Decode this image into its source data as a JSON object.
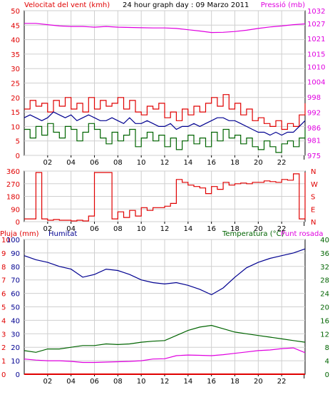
{
  "header": {
    "wind_label": "Velocitat del vent (kmh)",
    "title": "24 hour graph day : 09 Marzo 2011",
    "pressure_label": "Pressió (mb)"
  },
  "colors": {
    "red": "#e00000",
    "magenta": "#e000e0",
    "blue": "#000090",
    "green": "#006400",
    "grid": "#cfcfcf",
    "frame": "#000000"
  },
  "chart_data": [
    {
      "type": "line",
      "panel": "wind-pressure",
      "title": "24 hour graph day : 09 Marzo 2011",
      "x_ticks": [
        "02",
        "04",
        "06",
        "08",
        "10",
        "12",
        "14",
        "16",
        "18",
        "20",
        "22"
      ],
      "xlim_hours": [
        0,
        24
      ],
      "ylabel": "Velocitat del vent (kmh)",
      "ylim": [
        0,
        50
      ],
      "y_ticks": [
        0,
        5,
        10,
        15,
        20,
        25,
        30,
        35,
        40,
        45,
        50
      ],
      "y2label": "Pressió (mb)",
      "y2lim": [
        975,
        1032
      ],
      "y2_ticks": [
        975,
        981,
        986,
        992,
        998,
        1004,
        1010,
        1015,
        1021,
        1027,
        1032
      ],
      "series": [
        {
          "axis": "left",
          "color": "#e00000",
          "step": true,
          "x": [
            0,
            0.5,
            1,
            1.5,
            2,
            2.5,
            3,
            3.5,
            4,
            4.5,
            5,
            5.5,
            6,
            6.5,
            7,
            7.5,
            8,
            8.5,
            9,
            9.5,
            10,
            10.5,
            11,
            11.5,
            12,
            12.5,
            13,
            13.5,
            14,
            14.5,
            15,
            15.5,
            16,
            16.5,
            17,
            17.5,
            18,
            18.5,
            19,
            19.5,
            20,
            20.5,
            21,
            21.5,
            22,
            22.5,
            23,
            23.5,
            24
          ],
          "values": [
            16,
            19,
            17,
            18,
            15,
            19,
            17,
            20,
            16,
            18,
            15,
            20,
            16,
            19,
            17,
            18,
            20,
            16,
            19,
            15,
            14,
            17,
            16,
            18,
            13,
            15,
            12,
            16,
            14,
            17,
            15,
            18,
            20,
            17,
            21,
            16,
            18,
            14,
            16,
            12,
            13,
            11,
            10,
            12,
            9,
            11,
            10,
            14,
            18
          ]
        },
        {
          "axis": "left",
          "color": "#000090",
          "step": false,
          "x": [
            0,
            0.5,
            1,
            1.5,
            2,
            2.5,
            3,
            3.5,
            4,
            4.5,
            5,
            5.5,
            6,
            6.5,
            7,
            7.5,
            8,
            8.5,
            9,
            9.5,
            10,
            10.5,
            11,
            11.5,
            12,
            12.5,
            13,
            13.5,
            14,
            14.5,
            15,
            15.5,
            16,
            16.5,
            17,
            17.5,
            18,
            18.5,
            19,
            19.5,
            20,
            20.5,
            21,
            21.5,
            22,
            22.5,
            23,
            23.5,
            24
          ],
          "values": [
            13,
            14,
            13,
            12,
            13,
            15,
            14,
            13,
            14,
            12,
            13,
            14,
            13,
            12,
            12,
            13,
            12,
            11,
            13,
            11,
            11,
            12,
            11,
            10,
            10,
            11,
            9,
            10,
            10,
            11,
            10,
            11,
            12,
            13,
            13,
            12,
            12,
            11,
            10,
            9,
            8,
            8,
            7,
            8,
            7,
            8,
            8,
            10,
            12
          ]
        },
        {
          "axis": "left",
          "color": "#006400",
          "step": true,
          "x": [
            0,
            0.5,
            1,
            1.5,
            2,
            2.5,
            3,
            3.5,
            4,
            4.5,
            5,
            5.5,
            6,
            6.5,
            7,
            7.5,
            8,
            8.5,
            9,
            9.5,
            10,
            10.5,
            11,
            11.5,
            12,
            12.5,
            13,
            13.5,
            14,
            14.5,
            15,
            15.5,
            16,
            16.5,
            17,
            17.5,
            18,
            18.5,
            19,
            19.5,
            20,
            20.5,
            21,
            21.5,
            22,
            22.5,
            23,
            23.5,
            24
          ],
          "values": [
            9,
            6,
            10,
            7,
            11,
            8,
            6,
            10,
            9,
            5,
            8,
            11,
            9,
            6,
            4,
            8,
            5,
            7,
            9,
            3,
            6,
            8,
            5,
            7,
            3,
            6,
            2,
            5,
            7,
            4,
            6,
            3,
            8,
            5,
            9,
            6,
            7,
            4,
            6,
            3,
            2,
            5,
            3,
            1,
            4,
            5,
            3,
            6,
            9
          ]
        },
        {
          "axis": "right",
          "color": "#e000e0",
          "step": false,
          "x": [
            0,
            1,
            2,
            3,
            4,
            5,
            6,
            7,
            8,
            9,
            10,
            11,
            12,
            13,
            14,
            15,
            16,
            17,
            18,
            19,
            20,
            21,
            22,
            23,
            24
          ],
          "values": [
            1027,
            1027,
            1026.5,
            1026,
            1025.8,
            1025.8,
            1025.5,
            1025.8,
            1025.5,
            1025.4,
            1025.3,
            1025.2,
            1025.2,
            1025,
            1024.5,
            1024,
            1023.4,
            1023.5,
            1023.8,
            1024.3,
            1025,
            1025.6,
            1026,
            1026.5,
            1026.8
          ]
        }
      ]
    },
    {
      "type": "line",
      "panel": "wind-direction",
      "x_ticks": [
        "02",
        "04",
        "06",
        "08",
        "10",
        "12",
        "14",
        "16",
        "18",
        "20",
        "22"
      ],
      "xlim_hours": [
        0,
        24
      ],
      "ylim": [
        0,
        360
      ],
      "y_ticks": [
        0,
        90,
        180,
        270,
        360
      ],
      "y2_ticks": [
        "N",
        "E",
        "S",
        "W",
        "N"
      ],
      "series": [
        {
          "color": "#e00000",
          "step": true,
          "x": [
            0,
            0.5,
            1,
            1.5,
            2,
            2.5,
            3,
            3.5,
            4,
            4.5,
            5,
            5.5,
            6,
            6.5,
            7,
            7.5,
            8,
            8.5,
            9,
            9.5,
            10,
            10.5,
            11,
            11.5,
            12,
            12.5,
            13,
            13.5,
            14,
            14.5,
            15,
            15.5,
            16,
            16.5,
            17,
            17.5,
            18,
            18.5,
            19,
            19.5,
            20,
            20.5,
            21,
            21.5,
            22,
            22.5,
            23,
            23.5,
            24
          ],
          "values": [
            20,
            20,
            350,
            20,
            10,
            15,
            10,
            10,
            5,
            10,
            5,
            40,
            350,
            350,
            350,
            20,
            70,
            30,
            80,
            40,
            100,
            80,
            100,
            100,
            110,
            130,
            300,
            280,
            260,
            250,
            240,
            200,
            250,
            230,
            280,
            260,
            270,
            275,
            270,
            280,
            280,
            290,
            285,
            280,
            300,
            295,
            340,
            20,
            350
          ]
        }
      ]
    },
    {
      "type": "line",
      "panel": "rain-humidity-temperature",
      "x_ticks": [
        "02",
        "04",
        "06",
        "08",
        "10",
        "12",
        "14",
        "16",
        "18",
        "20",
        "22"
      ],
      "xlim_hours": [
        0,
        24
      ],
      "ylabel": "Pluja (mm)",
      "ylim": [
        0,
        10
      ],
      "y_ticks": [
        0,
        1,
        2,
        3,
        4,
        5,
        6,
        7,
        8,
        9,
        10
      ],
      "humidity_label": "Humitat",
      "humidity_ylim": [
        0,
        100
      ],
      "humidity_ticks": [
        0,
        10,
        20,
        30,
        40,
        50,
        60,
        70,
        80,
        90,
        100
      ],
      "y2label": "Temperatura (°C)",
      "dewpoint_label": "Punt rosada",
      "y2lim": [
        0,
        40
      ],
      "y2_ticks": [
        0,
        4,
        8,
        12,
        16,
        20,
        24,
        28,
        32,
        36,
        40
      ],
      "series": [
        {
          "name": "Humitat",
          "axis": "humidity",
          "color": "#000090",
          "x": [
            0,
            1,
            2,
            3,
            4,
            5,
            6,
            7,
            8,
            9,
            10,
            11,
            12,
            13,
            14,
            15,
            16,
            17,
            18,
            19,
            20,
            21,
            22,
            23,
            24
          ],
          "values": [
            88,
            85,
            83,
            80,
            78,
            72,
            74,
            78,
            77,
            74,
            70,
            68,
            67,
            68,
            66,
            63,
            59,
            64,
            72,
            79,
            83,
            86,
            88,
            90,
            93
          ]
        },
        {
          "name": "Temperatura (°C)",
          "axis": "right",
          "color": "#006400",
          "x": [
            0,
            1,
            2,
            3,
            4,
            5,
            6,
            7,
            8,
            9,
            10,
            11,
            12,
            13,
            14,
            15,
            16,
            17,
            18,
            19,
            20,
            21,
            22,
            23,
            24
          ],
          "values": [
            7,
            6.5,
            7.5,
            7.5,
            8,
            8.5,
            8.5,
            9,
            8.8,
            9,
            9.5,
            9.8,
            10,
            11.5,
            13,
            14,
            14.5,
            13.5,
            12.5,
            12,
            11.5,
            11,
            10.5,
            10,
            9.5
          ]
        },
        {
          "name": "Punt rosada",
          "axis": "right",
          "color": "#e000e0",
          "x": [
            0,
            1,
            2,
            3,
            4,
            5,
            6,
            7,
            8,
            9,
            10,
            11,
            12,
            13,
            14,
            15,
            16,
            17,
            18,
            19,
            20,
            21,
            22,
            23,
            24
          ],
          "values": [
            4.5,
            4.2,
            4,
            4,
            3.8,
            3.5,
            3.5,
            3.6,
            3.7,
            3.8,
            4,
            4.5,
            4.6,
            5.5,
            5.7,
            5.6,
            5.5,
            5.8,
            6.2,
            6.6,
            7,
            7.2,
            7.6,
            7.8,
            6.4
          ]
        },
        {
          "name": "Pluja (mm)",
          "axis": "left",
          "color": "#e00000",
          "x": [
            0,
            24
          ],
          "values": [
            0,
            0
          ]
        }
      ]
    }
  ]
}
